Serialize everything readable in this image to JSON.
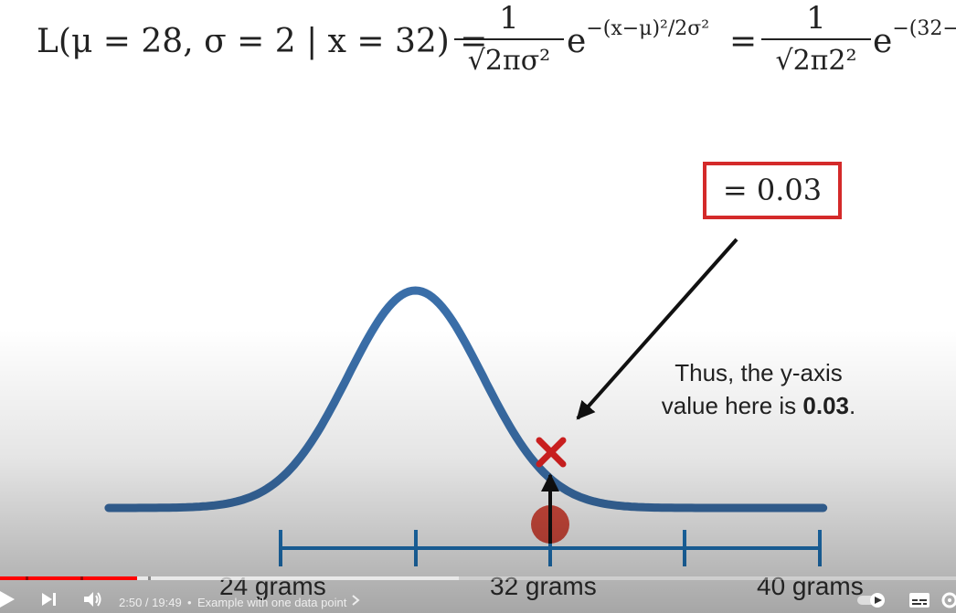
{
  "formula": {
    "lhs": "L(μ = 28, σ = 2 | x = 32) =",
    "frac1_num": "1",
    "frac1_den": "√2πσ²",
    "exp1_base": "e",
    "exp1_sup": "−(x−μ)²/2σ²",
    "eq": "=",
    "frac2_num": "1",
    "frac2_den": "√2π2²",
    "exp2_base": "e",
    "exp2_sup": "−(32−"
  },
  "result": "= 0.03",
  "annotation": {
    "line1": "Thus, the y-axis",
    "line2_prefix": "value here is ",
    "line2_bold": "0.03",
    "line2_suffix": "."
  },
  "axis_labels": [
    "24 grams",
    "32 grams",
    "40 grams"
  ],
  "colors": {
    "curve": "#3a6ea8",
    "axis": "#1f78c0",
    "marker_x": "#dd2222",
    "data_point": "#d63a2a",
    "box_border": "#d42a2a",
    "progress": "#ff0000"
  },
  "player": {
    "time": "2:50 / 19:49",
    "separator": "•",
    "chapter": "Example with one data point",
    "progress_fraction": 0.143,
    "buffer_fraction": 0.48,
    "icons": [
      "play-icon",
      "next-icon",
      "volume-icon",
      "chevron-right-icon",
      "autoplay-toggle-icon",
      "subtitles-icon",
      "settings-icon"
    ]
  }
}
